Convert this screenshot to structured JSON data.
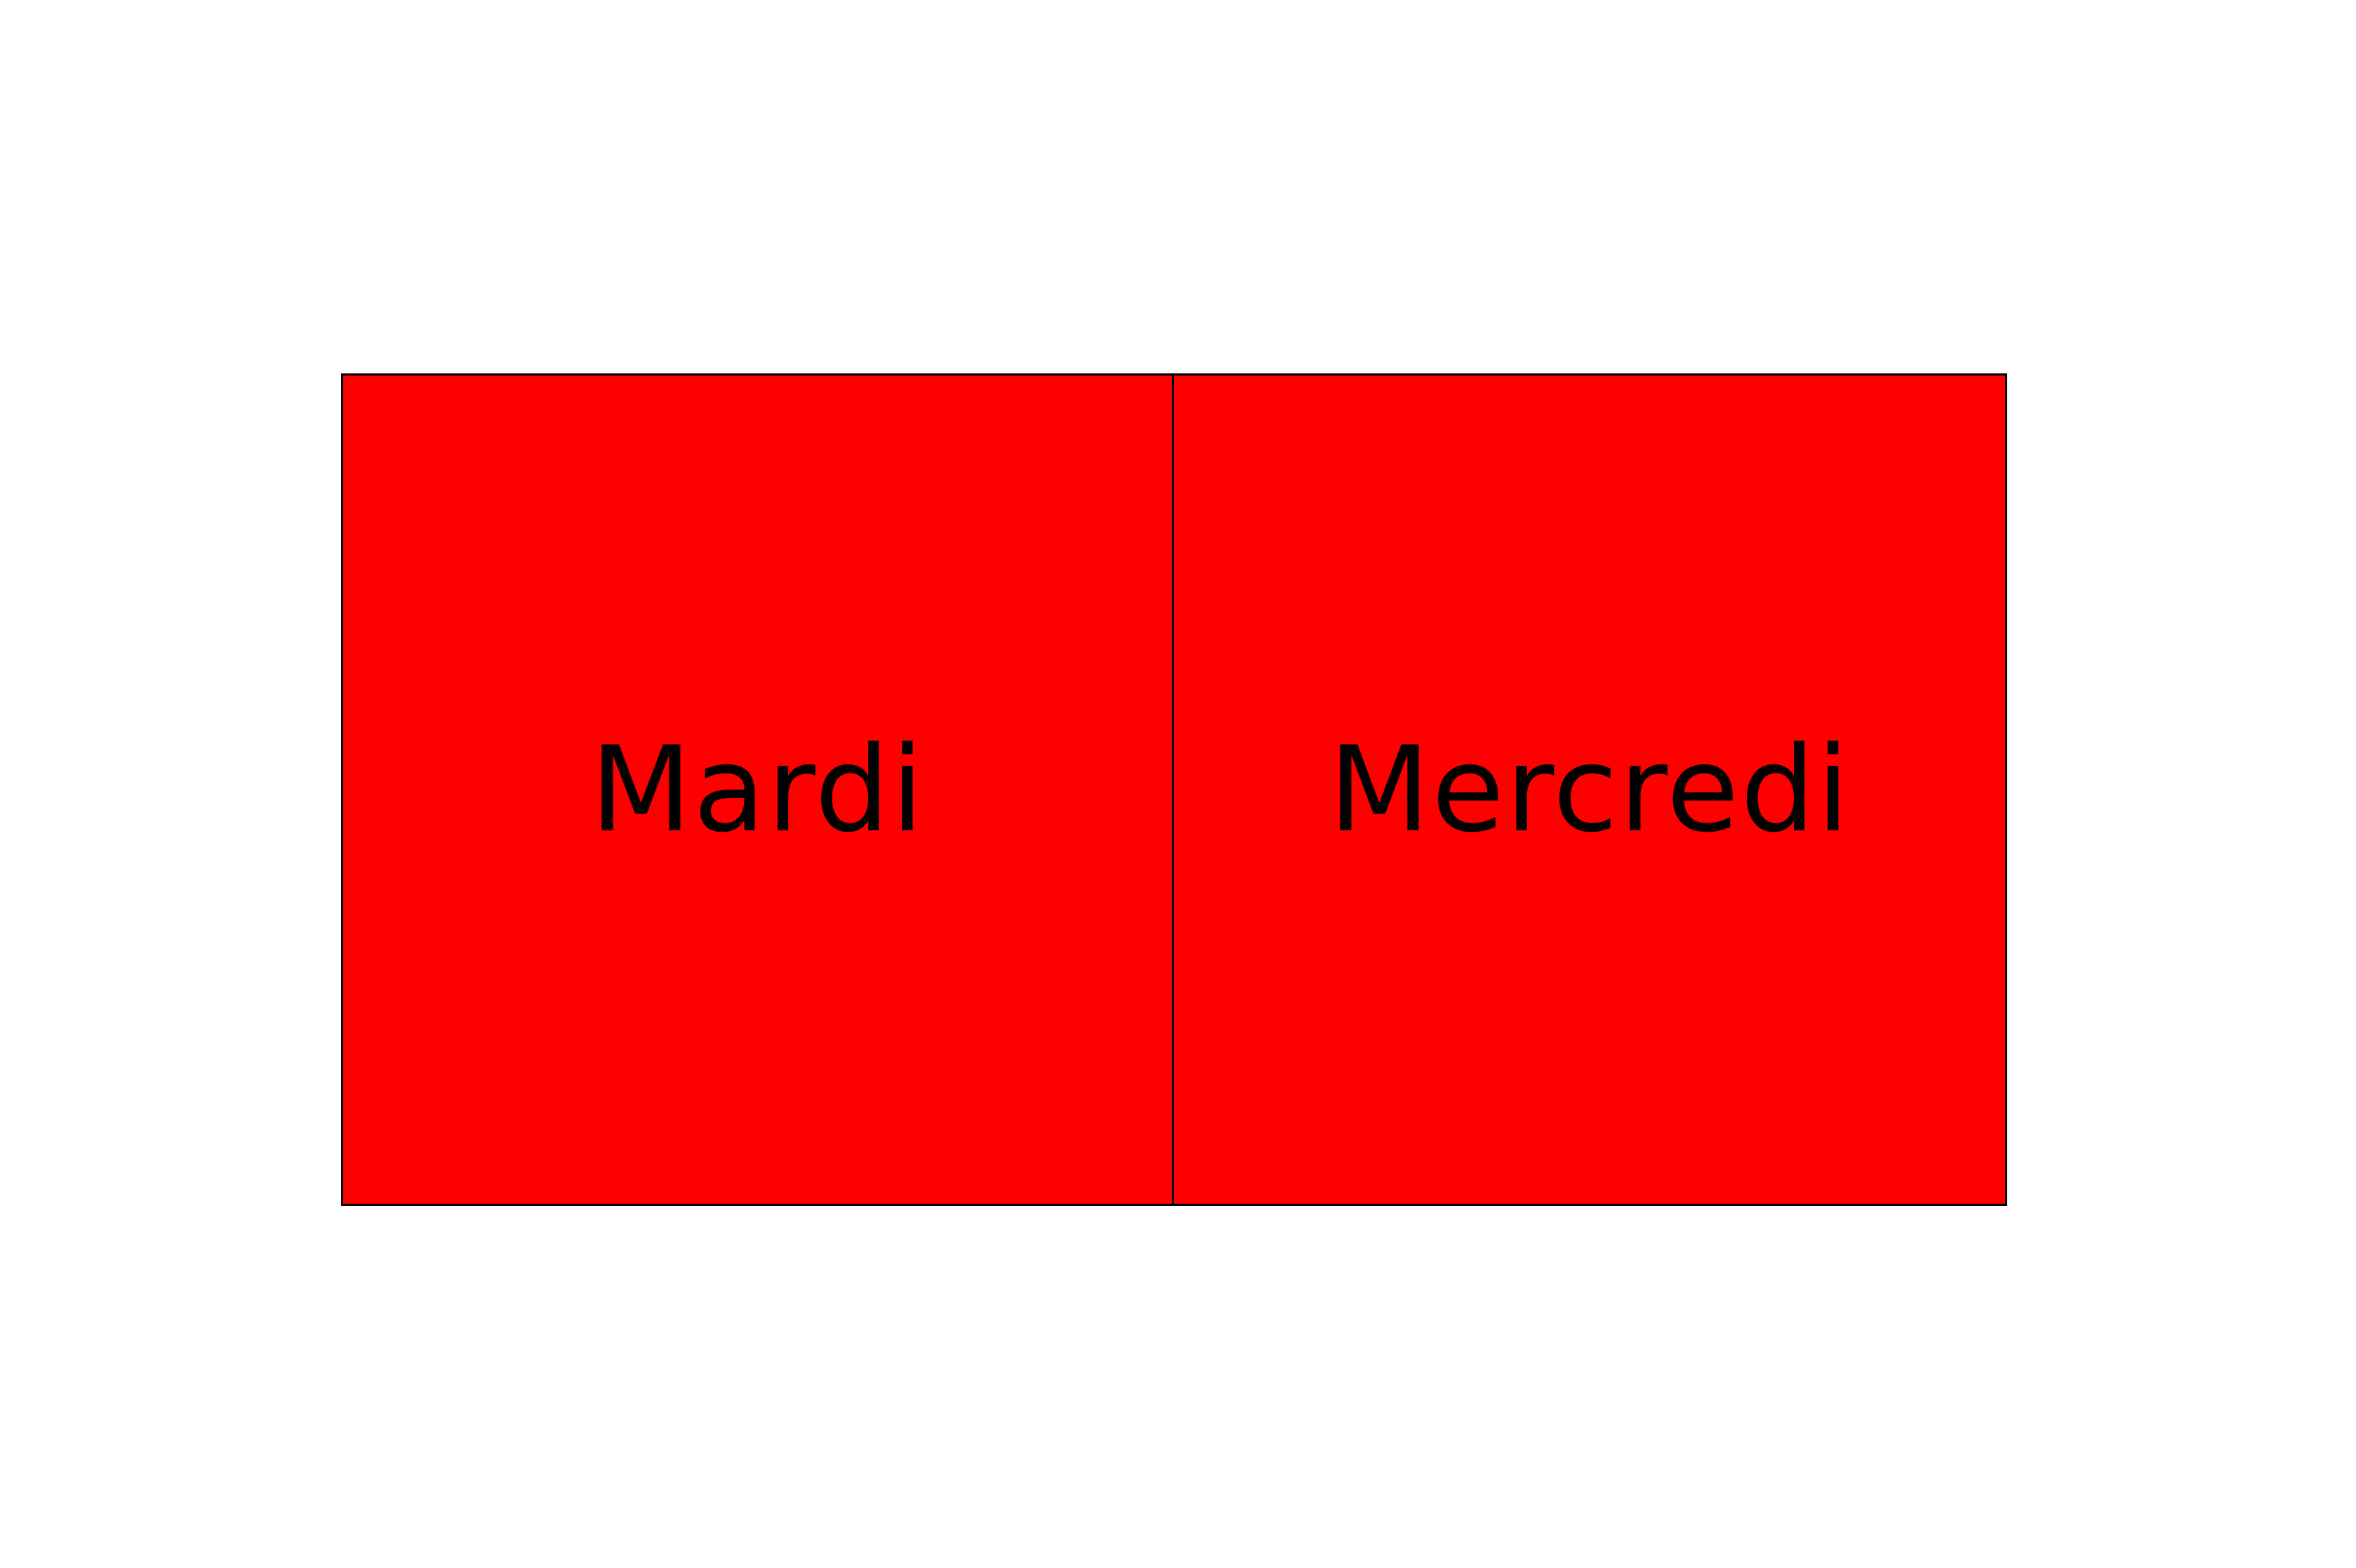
{
  "colors": {
    "background": "#ffffff",
    "card_fill": "#ff0000",
    "border": "#000000",
    "text": "#000000"
  },
  "cards": [
    {
      "label": "Mardi"
    },
    {
      "label": "Mercredi"
    }
  ]
}
